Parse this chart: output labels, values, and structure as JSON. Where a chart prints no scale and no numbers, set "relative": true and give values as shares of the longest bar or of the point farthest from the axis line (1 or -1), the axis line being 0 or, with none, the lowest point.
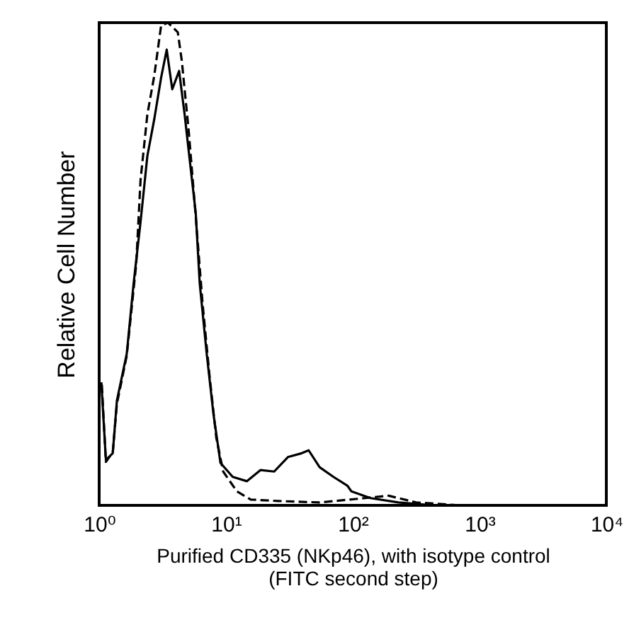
{
  "chart_data": {
    "type": "line",
    "relative": true,
    "xlabel": "Purified CD335 (NKp46), with isotype control\n(FITC second step)",
    "ylabel": "Relative Cell Number",
    "log": "x",
    "xlim": [
      1,
      10000
    ],
    "xticks": [
      {
        "value": 1,
        "label": "10⁰"
      },
      {
        "value": 10,
        "label": "10¹"
      },
      {
        "value": 100,
        "label": "10²"
      },
      {
        "value": 1000,
        "label": "10³"
      },
      {
        "value": 10000,
        "label": "10⁴"
      }
    ],
    "series": [
      {
        "color": "#000000",
        "line_style": "solid",
        "x": [
          1.04,
          1.13,
          1.28,
          1.38,
          1.65,
          1.87,
          2.12,
          2.4,
          2.72,
          3.08,
          3.41,
          3.77,
          4.27,
          4.72,
          5.09,
          5.77,
          6.21,
          7.05,
          7.98,
          9.05,
          11.3,
          14.6,
          18.7,
          24,
          30.8,
          39.6,
          44.9,
          54.8,
          70.4,
          90.5,
          97.6,
          138,
          229,
          438
        ],
        "values": [
          0.255,
          0.094,
          0.108,
          0.217,
          0.314,
          0.46,
          0.587,
          0.724,
          0.8,
          0.886,
          0.944,
          0.862,
          0.9,
          0.81,
          0.733,
          0.607,
          0.46,
          0.314,
          0.188,
          0.088,
          0.059,
          0.05,
          0.073,
          0.07,
          0.1,
          0.108,
          0.114,
          0.079,
          0.059,
          0.041,
          0.029,
          0.015,
          0.006,
          0
        ]
      },
      {
        "color": "#000000",
        "line_style": "dashed",
        "x": [
          1.05,
          1.13,
          1.28,
          1.38,
          1.65,
          1.96,
          2.12,
          2.4,
          2.72,
          3.08,
          3.49,
          4.17,
          4.49,
          5.09,
          5.77,
          6.53,
          7.41,
          8.39,
          9.51,
          12.2,
          15.7,
          25.9,
          54.8,
          125,
          192,
          316,
          722
        ],
        "values": [
          0.25,
          0.09,
          0.11,
          0.21,
          0.31,
          0.5,
          0.674,
          0.81,
          0.89,
          0.994,
          1,
          0.98,
          0.92,
          0.774,
          0.6,
          0.42,
          0.27,
          0.14,
          0.07,
          0.029,
          0.012,
          0.009,
          0.006,
          0.015,
          0.02,
          0.006,
          0
        ]
      }
    ]
  }
}
